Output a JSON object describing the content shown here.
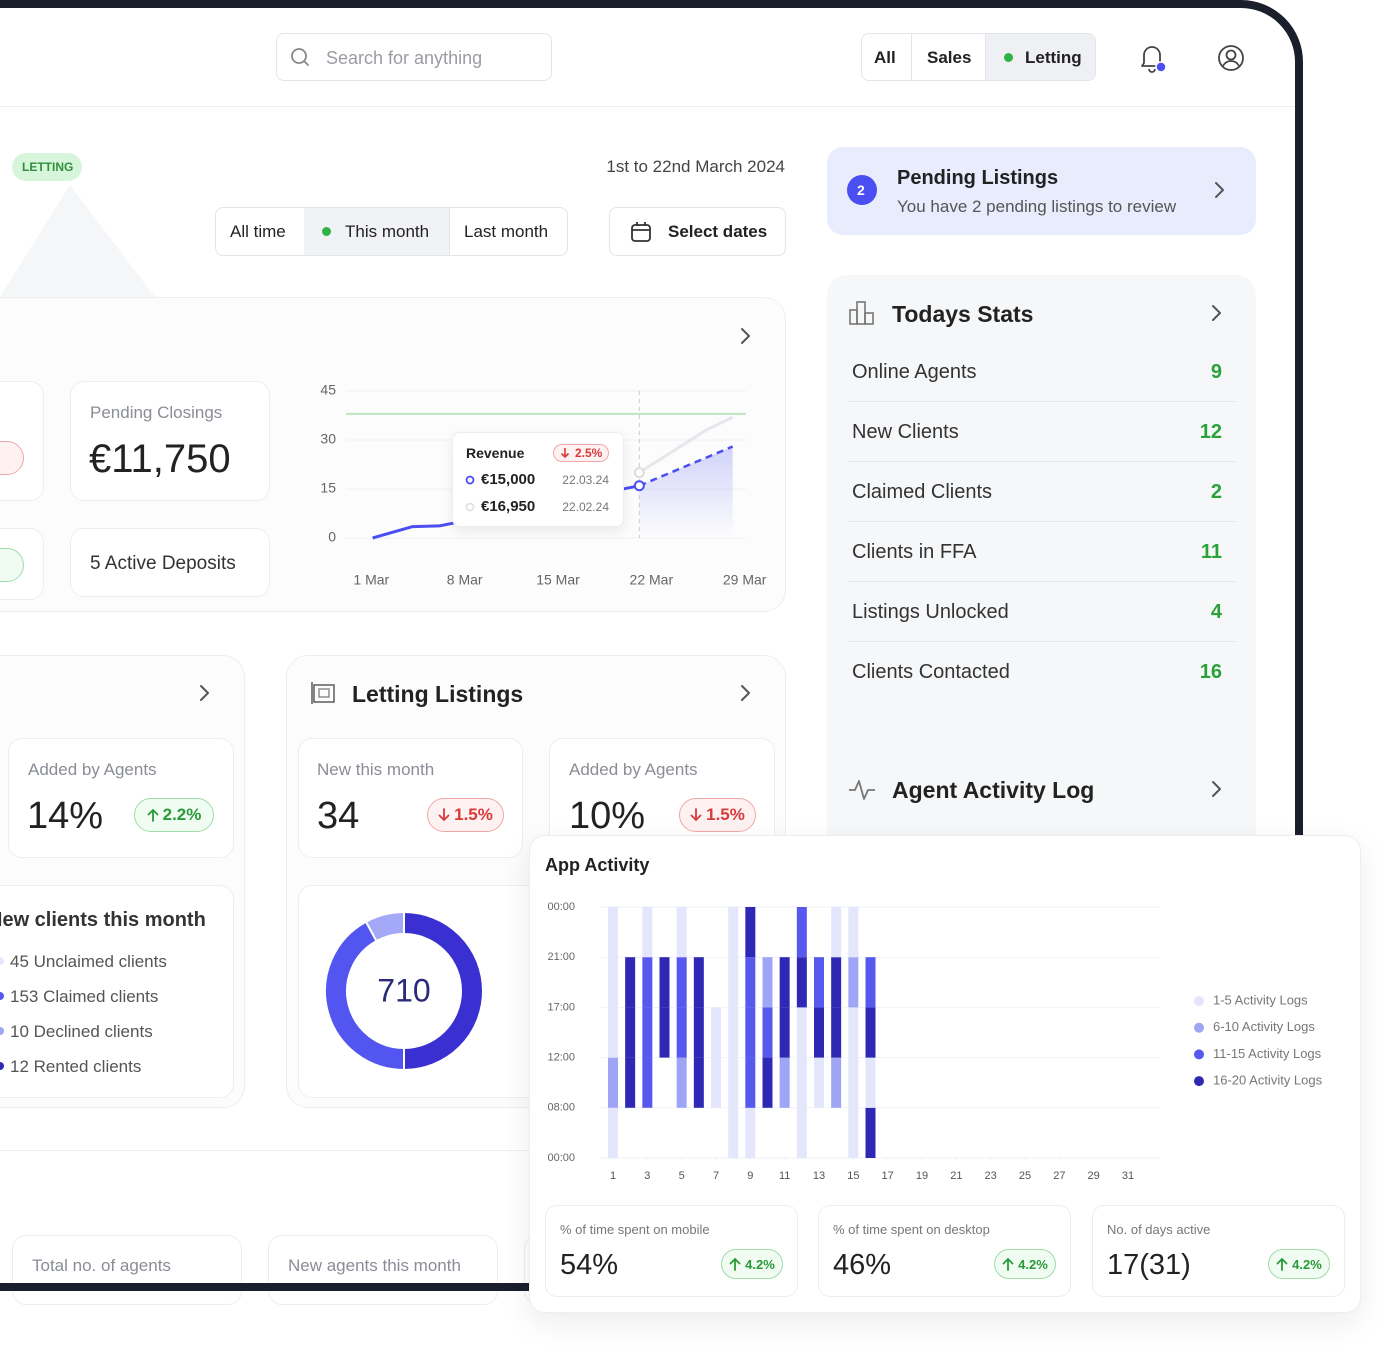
{
  "header": {
    "search_placeholder": "Search for anything",
    "filters": [
      "All",
      "Sales",
      "Letting"
    ]
  },
  "overview": {
    "badge": "LETTING",
    "date_range": "1st to 22nd March 2024",
    "periods": [
      "All time",
      "This month",
      "Last month"
    ],
    "select_dates": "Select dates"
  },
  "revenue": {
    "pending_closings_label": "Pending Closings",
    "pending_closings_value": "€11,750",
    "active_deposits": "5 Active Deposits",
    "tooltip": {
      "title": "Revenue",
      "change": "2.5%",
      "rows": [
        {
          "value": "€15,000",
          "date": "22.03.24"
        },
        {
          "value": "€16,950",
          "date": "22.02.24"
        }
      ]
    }
  },
  "clients": {
    "added_label": "Added by Agents",
    "added_value": "14%",
    "added_change": "2.2%",
    "new_clients_title": "New clients this month",
    "items": [
      "45 Unclaimed clients",
      "153 Claimed clients",
      "10 Declined clients",
      "12 Rented clients"
    ]
  },
  "letting_listings": {
    "title": "Letting Listings",
    "new_label": "New this month",
    "new_value": 34,
    "new_change": "1.5%",
    "added_label": "Added by Agents",
    "added_value": "10%",
    "added_change": "1.5%"
  },
  "agents": {
    "total_label": "Total no. of agents",
    "new_label": "New agents this month"
  },
  "pending": {
    "count": 2,
    "title": "Pending Listings",
    "subtitle": "You have 2 pending listings to review"
  },
  "todays_stats": {
    "title": "Todays Stats",
    "rows": [
      {
        "label": "Online Agents",
        "value": 9
      },
      {
        "label": "New Clients",
        "value": 12
      },
      {
        "label": "Claimed Clients",
        "value": 2
      },
      {
        "label": "Clients in FFA",
        "value": 11
      },
      {
        "label": "Listings Unlocked",
        "value": 4
      },
      {
        "label": "Clients Contacted",
        "value": 16
      }
    ]
  },
  "activity_log": {
    "title": "Agent Activity Log"
  },
  "app_activity": {
    "stats": [
      {
        "label": "% of time spent on mobile",
        "value": "54%",
        "change": "4.2%"
      },
      {
        "label": "% of time spent on desktop",
        "value": "46%",
        "change": "4.2%"
      },
      {
        "label": "No. of days active",
        "value": "17(31)",
        "change": "4.2%"
      }
    ]
  },
  "chart_data": [
    {
      "type": "line",
      "ylim": [
        0,
        45
      ],
      "yticks": [
        0,
        15,
        30,
        45
      ],
      "xlim": [
        0,
        30
      ],
      "xticks": [
        {
          "value": 1,
          "label": "1 Mar"
        },
        {
          "value": 8,
          "label": "8 Mar"
        },
        {
          "value": 15,
          "label": "15 Mar"
        },
        {
          "value": 22,
          "label": "22 Mar"
        },
        {
          "value": 29,
          "label": "29 Mar"
        }
      ],
      "reference_line": 38,
      "reference_color": "#bfe5c2",
      "series": [
        {
          "color": "#4b4ef0",
          "dashed": false,
          "x": [
            2,
            5,
            7,
            22
          ],
          "values": [
            0,
            3.5,
            3.7,
            16
          ]
        },
        {
          "color": "#4b4ef0",
          "dashed": true,
          "x": [
            22,
            29
          ],
          "values": [
            16,
            28
          ]
        },
        {
          "color": "#e6e7ec",
          "dashed": false,
          "x": [
            22,
            27,
            29
          ],
          "values": [
            20,
            33,
            37
          ]
        }
      ]
    },
    {
      "type": "pie",
      "center_label": 710,
      "values": [
        50,
        42,
        8
      ],
      "colors": [
        "#3a2fd0",
        "#5355f0",
        "#a3a9f6"
      ]
    },
    {
      "type": "heatmap",
      "title": "App Activity",
      "y_categories": [
        "00:00",
        "21:00",
        "17:00",
        "12:00",
        "08:00",
        "00:00"
      ],
      "xlim": [
        1,
        31
      ],
      "xticks": [
        1,
        3,
        5,
        7,
        9,
        11,
        13,
        15,
        17,
        19,
        21,
        23,
        25,
        27,
        29,
        31
      ],
      "levels": [
        "1-5 Activity Logs",
        "6-10 Activity Logs",
        "11-15 Activity Logs",
        "16-20 Activity Logs"
      ],
      "colors": [
        "#e4e7fb",
        "#9ea5f4",
        "#5658ee",
        "#2e28b5"
      ],
      "x": [
        1,
        2,
        3,
        4,
        5,
        6,
        7,
        8,
        9,
        10,
        11,
        12,
        13,
        14,
        15,
        16
      ],
      "values": [
        [
          1,
          2,
          1,
          1,
          1
        ],
        [
          0,
          4,
          4,
          4,
          0
        ],
        [
          0,
          3,
          3,
          3,
          1
        ],
        [
          0,
          0,
          4,
          4,
          0
        ],
        [
          0,
          2,
          3,
          3,
          1
        ],
        [
          0,
          4,
          4,
          4,
          0
        ],
        [
          0,
          1,
          1,
          0,
          0
        ],
        [
          1,
          1,
          1,
          1,
          1
        ],
        [
          1,
          3,
          3,
          3,
          4
        ],
        [
          0,
          4,
          3,
          2,
          0
        ],
        [
          0,
          2,
          4,
          4,
          0
        ],
        [
          1,
          1,
          1,
          4,
          3
        ],
        [
          0,
          1,
          4,
          3,
          0
        ],
        [
          0,
          2,
          4,
          4,
          1
        ],
        [
          1,
          1,
          1,
          2,
          1
        ],
        [
          4,
          1,
          4,
          3,
          0
        ]
      ]
    }
  ]
}
